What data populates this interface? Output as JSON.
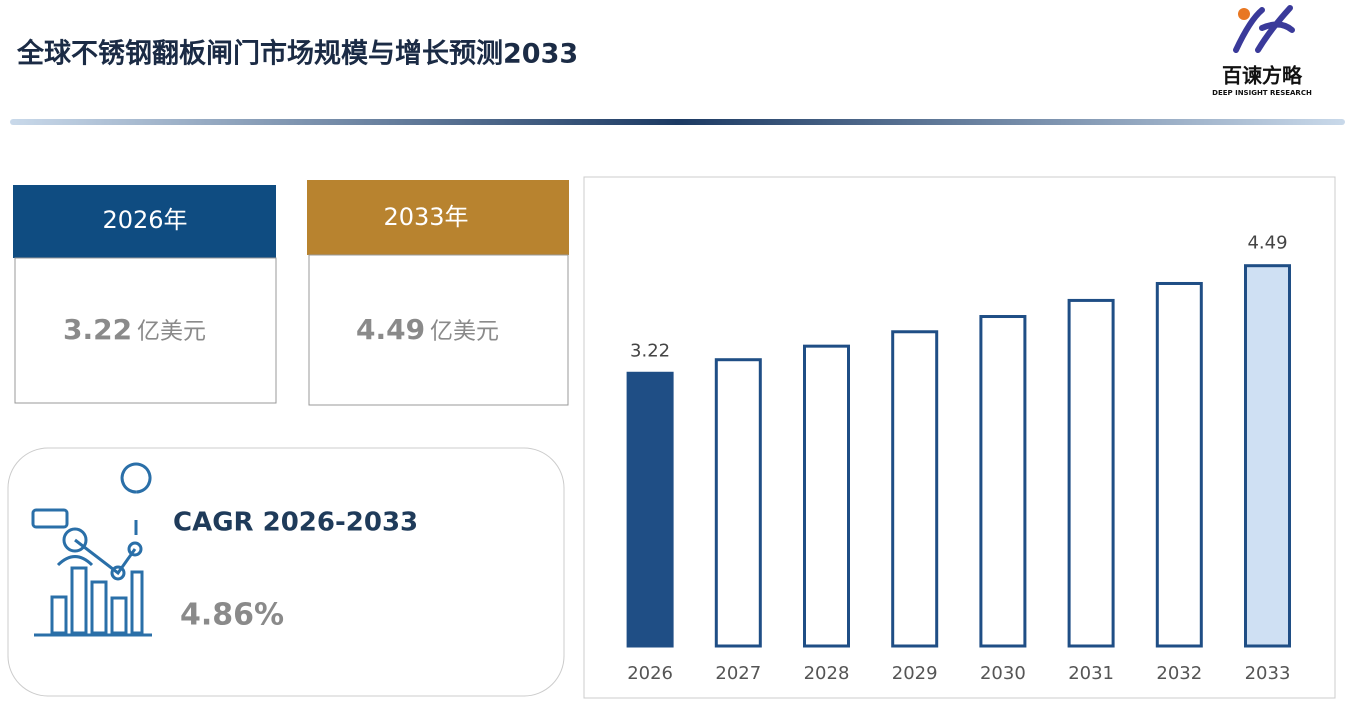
{
  "header": {
    "title": "全球不锈钢翻板闸门市场规模与增长预测2033",
    "logo_name": "百谏方略",
    "logo_sub": "DEEP INSIGHT RESEARCH"
  },
  "cards": [
    {
      "header": "2026年",
      "unit": "亿美元"
    },
    {
      "header": "2033年",
      "unit": "亿美元"
    }
  ],
  "cagr": {
    "label": "CAGR 2026-2033",
    "value": "4.86%"
  },
  "chart_data": {
    "type": "bar",
    "categories": [
      "2026",
      "2027",
      "2028",
      "2029",
      "2030",
      "2031",
      "2032",
      "2033"
    ],
    "values": [
      3.22,
      3.38,
      3.54,
      3.71,
      3.89,
      4.08,
      4.28,
      4.49
    ],
    "color": "#1f4e85"
  }
}
